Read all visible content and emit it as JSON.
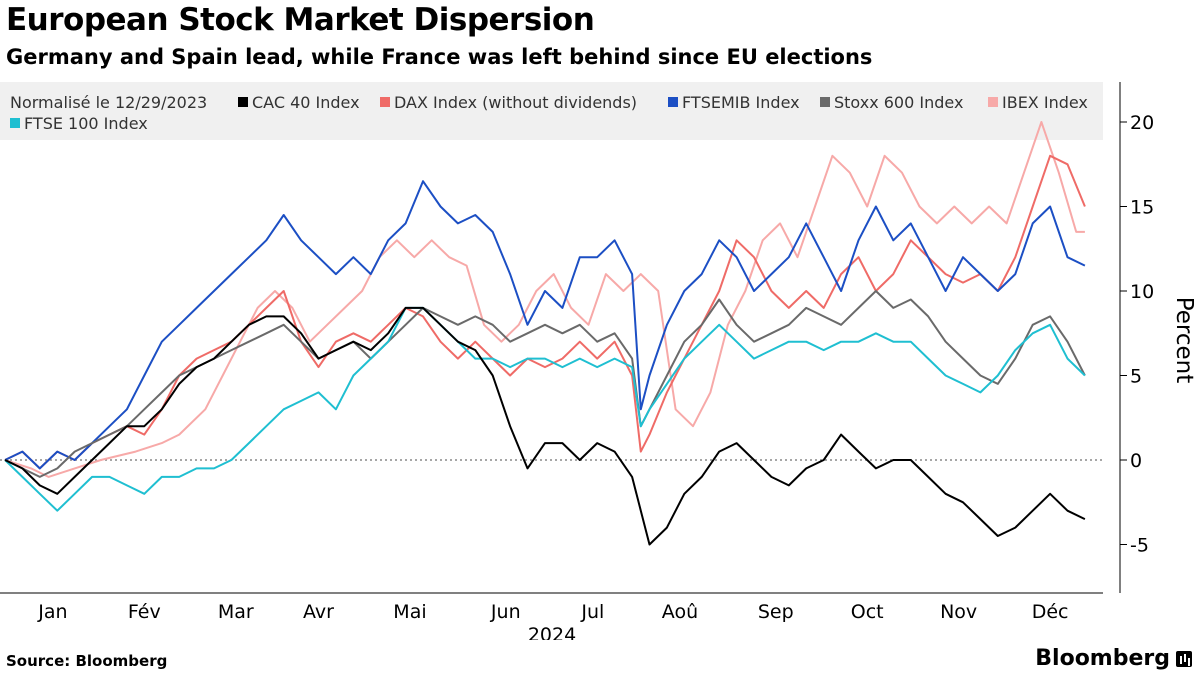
{
  "title": "European Stock Market Dispersion",
  "subtitle": "Germany and Spain lead, while France was left behind since EU elections",
  "source": "Source: Bloomberg",
  "brand": "Bloomberg",
  "chart_data": {
    "type": "line",
    "legend_title": "Normalisé le 12/29/2023",
    "legend_position": "top",
    "ylabel": "Percent",
    "ylim": [
      -7.5,
      22.5
    ],
    "yticks": [
      -5,
      0,
      5,
      10,
      15,
      20
    ],
    "xlabel": "2024",
    "xlim": [
      0,
      251
    ],
    "month_labels": [
      "Jan",
      "Fév",
      "Mar",
      "Avr",
      "Mai",
      "Jun",
      "Jul",
      "Aoû",
      "Sep",
      "Oct",
      "Nov",
      "Déc"
    ],
    "month_day_index": [
      11,
      32,
      53,
      72,
      93,
      115,
      135,
      155,
      177,
      198,
      219,
      240
    ],
    "zero_line": "dotted",
    "series": [
      {
        "name": "IBEX Index",
        "color": "#f7a9a8",
        "x": [
          0,
          6,
          10,
          16,
          22,
          30,
          36,
          40,
          46,
          50,
          54,
          58,
          62,
          66,
          70,
          74,
          78,
          82,
          86,
          90,
          94,
          98,
          102,
          106,
          110,
          114,
          118,
          122,
          126,
          130,
          134,
          138,
          142,
          146,
          150,
          154,
          158,
          162,
          166,
          170,
          174,
          178,
          182,
          186,
          190,
          194,
          198,
          202,
          206,
          210,
          214,
          218,
          222,
          226,
          230,
          234,
          238,
          242,
          246,
          248
        ],
        "values": [
          0,
          -0.5,
          -1,
          -0.5,
          0,
          0.5,
          1,
          1.5,
          3,
          5,
          7,
          9,
          10,
          9,
          7,
          8,
          9,
          10,
          12,
          13,
          12,
          13,
          12,
          11.5,
          8,
          7,
          8,
          10,
          11,
          9,
          8,
          11,
          10,
          11,
          10,
          3,
          2,
          4,
          8,
          10,
          13,
          14,
          12,
          15,
          18,
          17,
          15,
          18,
          17,
          15,
          14,
          15,
          14,
          15,
          14,
          17,
          20,
          17,
          13.5,
          13.5
        ]
      },
      {
        "name": "DAX Index (without dividends)",
        "color": "#ef6b67",
        "x": [
          0,
          4,
          8,
          12,
          16,
          20,
          24,
          28,
          32,
          36,
          40,
          44,
          48,
          52,
          56,
          60,
          64,
          68,
          72,
          76,
          80,
          84,
          88,
          92,
          96,
          100,
          104,
          108,
          112,
          116,
          120,
          124,
          128,
          132,
          136,
          140,
          144,
          146,
          148,
          152,
          156,
          160,
          164,
          168,
          172,
          176,
          180,
          184,
          188,
          192,
          196,
          200,
          204,
          208,
          212,
          216,
          220,
          224,
          228,
          232,
          236,
          240,
          244,
          248
        ],
        "values": [
          0,
          0.5,
          -0.5,
          0.5,
          0,
          1,
          1.5,
          2,
          1.5,
          3,
          5,
          6,
          6.5,
          7,
          8,
          9,
          10,
          7,
          5.5,
          7,
          7.5,
          7,
          8,
          9,
          8.5,
          7,
          6,
          7,
          6,
          5,
          6,
          5.5,
          6,
          7,
          6,
          7,
          5,
          0.5,
          1.5,
          4,
          6,
          8,
          10,
          13,
          12,
          10,
          9,
          10,
          9,
          11,
          12,
          10,
          11,
          13,
          12,
          11,
          10.5,
          11,
          10,
          12,
          15,
          18,
          17.5,
          15
        ]
      },
      {
        "name": "FTSEMIB Index",
        "color": "#1c4fc4",
        "x": [
          0,
          4,
          8,
          12,
          16,
          20,
          24,
          28,
          32,
          36,
          40,
          44,
          48,
          52,
          56,
          60,
          64,
          68,
          72,
          76,
          80,
          84,
          88,
          92,
          96,
          100,
          104,
          108,
          112,
          116,
          120,
          124,
          128,
          132,
          136,
          140,
          144,
          146,
          148,
          152,
          156,
          160,
          164,
          168,
          172,
          176,
          180,
          184,
          188,
          192,
          196,
          200,
          204,
          208,
          212,
          216,
          220,
          224,
          228,
          232,
          236,
          240,
          244,
          248
        ],
        "values": [
          0,
          0.5,
          -0.5,
          0.5,
          0,
          1,
          2,
          3,
          5,
          7,
          8,
          9,
          10,
          11,
          12,
          13,
          14.5,
          13,
          12,
          11,
          12,
          11,
          13,
          14,
          16.5,
          15,
          14,
          14.5,
          13.5,
          11,
          8,
          10,
          9,
          12,
          12,
          13,
          11,
          3,
          5,
          8,
          10,
          11,
          13,
          12,
          10,
          11,
          12,
          14,
          12,
          10,
          13,
          15,
          13,
          14,
          12,
          10,
          12,
          11,
          10,
          11,
          14,
          15,
          12,
          11.5
        ]
      },
      {
        "name": "Stoxx 600 Index",
        "color": "#6a6a6a",
        "x": [
          0,
          4,
          8,
          12,
          16,
          20,
          24,
          28,
          32,
          36,
          40,
          44,
          48,
          52,
          56,
          60,
          64,
          68,
          72,
          76,
          80,
          84,
          88,
          92,
          96,
          100,
          104,
          108,
          112,
          116,
          120,
          124,
          128,
          132,
          136,
          140,
          144,
          146,
          148,
          152,
          156,
          160,
          164,
          168,
          172,
          176,
          180,
          184,
          188,
          192,
          196,
          200,
          204,
          208,
          212,
          216,
          220,
          224,
          228,
          232,
          236,
          240,
          244,
          248
        ],
        "values": [
          0,
          -0.5,
          -1,
          -0.5,
          0.5,
          1,
          1.5,
          2,
          3,
          4,
          5,
          5.5,
          6,
          6.5,
          7,
          7.5,
          8,
          7,
          6,
          6.5,
          7,
          6,
          7,
          8,
          9,
          8.5,
          8,
          8.5,
          8,
          7,
          7.5,
          8,
          7.5,
          8,
          7,
          7.5,
          6,
          2,
          3,
          5,
          7,
          8,
          9.5,
          8,
          7,
          7.5,
          8,
          9,
          8.5,
          8,
          9,
          10,
          9,
          9.5,
          8.5,
          7,
          6,
          5,
          4.5,
          6,
          8,
          8.5,
          7,
          5
        ]
      },
      {
        "name": "FTSE 100 Index",
        "color": "#1fbfd1",
        "x": [
          0,
          4,
          8,
          12,
          16,
          20,
          24,
          28,
          32,
          36,
          40,
          44,
          48,
          52,
          56,
          60,
          64,
          68,
          72,
          76,
          80,
          84,
          88,
          92,
          96,
          100,
          104,
          108,
          112,
          116,
          120,
          124,
          128,
          132,
          136,
          140,
          144,
          146,
          148,
          152,
          156,
          160,
          164,
          168,
          172,
          176,
          180,
          184,
          188,
          192,
          196,
          200,
          204,
          208,
          212,
          216,
          220,
          224,
          228,
          232,
          236,
          240,
          244,
          248
        ],
        "values": [
          0,
          -1,
          -2,
          -3,
          -2,
          -1,
          -1,
          -1.5,
          -2,
          -1,
          -1,
          -0.5,
          -0.5,
          0,
          1,
          2,
          3,
          3.5,
          4,
          3,
          5,
          6,
          7,
          9,
          9,
          8,
          7,
          6,
          6,
          5.5,
          6,
          6,
          5.5,
          6,
          5.5,
          6,
          5.5,
          2,
          3,
          4.5,
          6,
          7,
          8,
          7,
          6,
          6.5,
          7,
          7,
          6.5,
          7,
          7,
          7.5,
          7,
          7,
          6,
          5,
          4.5,
          4,
          5,
          6.5,
          7.5,
          8,
          6,
          5
        ]
      },
      {
        "name": "CAC 40 Index",
        "color": "#000000",
        "x": [
          0,
          4,
          8,
          12,
          16,
          20,
          24,
          28,
          32,
          36,
          40,
          44,
          48,
          52,
          56,
          60,
          64,
          68,
          72,
          76,
          80,
          84,
          88,
          92,
          96,
          100,
          104,
          108,
          112,
          116,
          120,
          124,
          128,
          132,
          136,
          140,
          144,
          146,
          148,
          152,
          156,
          160,
          164,
          168,
          172,
          176,
          180,
          184,
          188,
          192,
          196,
          200,
          204,
          208,
          212,
          216,
          220,
          224,
          228,
          232,
          236,
          240,
          244,
          248
        ],
        "values": [
          0,
          -0.5,
          -1.5,
          -2,
          -1,
          0,
          1,
          2,
          2,
          3,
          4.5,
          5.5,
          6,
          7,
          8,
          8.5,
          8.5,
          7.5,
          6,
          6.5,
          7,
          6.5,
          7.5,
          9,
          9,
          8,
          7,
          6.5,
          5,
          2,
          -0.5,
          1,
          1,
          0,
          1,
          0.5,
          -1,
          -3,
          -5,
          -4,
          -2,
          -1,
          0.5,
          1,
          0,
          -1,
          -1.5,
          -0.5,
          0,
          1.5,
          0.5,
          -0.5,
          0,
          0,
          -1,
          -2,
          -2.5,
          -3.5,
          -4.5,
          -4,
          -3,
          -2,
          -3,
          -3.5
        ]
      }
    ]
  }
}
